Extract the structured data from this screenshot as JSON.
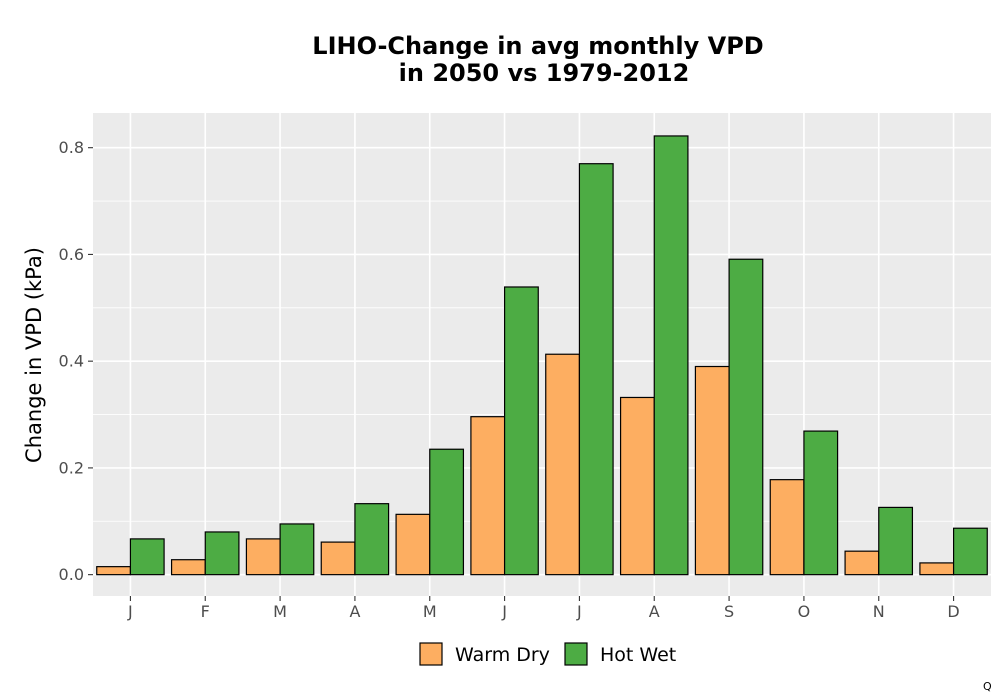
{
  "chart_data": {
    "type": "bar",
    "title_line1": "LIHO-Change in avg monthly VPD",
    "title_line2": "in 2050 vs 1979-2012",
    "xlabel": "",
    "ylabel": "Change in VPD (kPa)",
    "categories": [
      "J",
      "F",
      "M",
      "A",
      "M",
      "J",
      "J",
      "A",
      "S",
      "O",
      "N",
      "D"
    ],
    "series": [
      {
        "name": "Warm Dry",
        "color": "#FDAE61",
        "values": [
          0.015,
          0.028,
          0.067,
          0.061,
          0.113,
          0.296,
          0.413,
          0.332,
          0.39,
          0.178,
          0.044,
          0.022
        ]
      },
      {
        "name": "Hot Wet",
        "color": "#4DAC44",
        "values": [
          0.067,
          0.08,
          0.095,
          0.133,
          0.235,
          0.539,
          0.77,
          0.822,
          0.591,
          0.269,
          0.126,
          0.087
        ]
      }
    ],
    "ylim": [
      -0.04,
      0.865
    ],
    "yticks": [
      0.0,
      0.2,
      0.4,
      0.6,
      0.8
    ],
    "ytick_labels": [
      "0.0",
      "0.2",
      "0.4",
      "0.6",
      "0.8"
    ],
    "grid": true,
    "legend_position": "bottom",
    "panel_color": "#EBEBEB"
  },
  "corner_mark": "Q"
}
